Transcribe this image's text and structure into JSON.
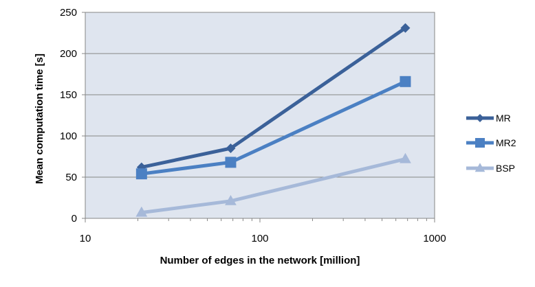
{
  "chart_data": {
    "type": "line",
    "xscale": "log",
    "xlim": [
      10,
      1000
    ],
    "ylim": [
      0,
      250
    ],
    "x_ticks": [
      10,
      100,
      1000
    ],
    "y_ticks": [
      0,
      50,
      100,
      150,
      200,
      250
    ],
    "xlabel": "Number of edges in the network [million]",
    "ylabel": "Mean computation  time [s]",
    "grid": "horizontal",
    "legend": "right",
    "plot_background": "#dfe5ef",
    "series": [
      {
        "name": "MR",
        "marker": "diamond",
        "color": "#3b6199",
        "x": [
          21,
          68,
          680
        ],
        "y": [
          62,
          85,
          231
        ]
      },
      {
        "name": "MR2",
        "marker": "square",
        "color": "#4b80c3",
        "x": [
          21,
          68,
          680
        ],
        "y": [
          54,
          68,
          166
        ]
      },
      {
        "name": "BSP",
        "marker": "triangle",
        "color": "#a6b9d9",
        "x": [
          21,
          68,
          680
        ],
        "y": [
          7,
          21,
          72
        ]
      }
    ]
  }
}
